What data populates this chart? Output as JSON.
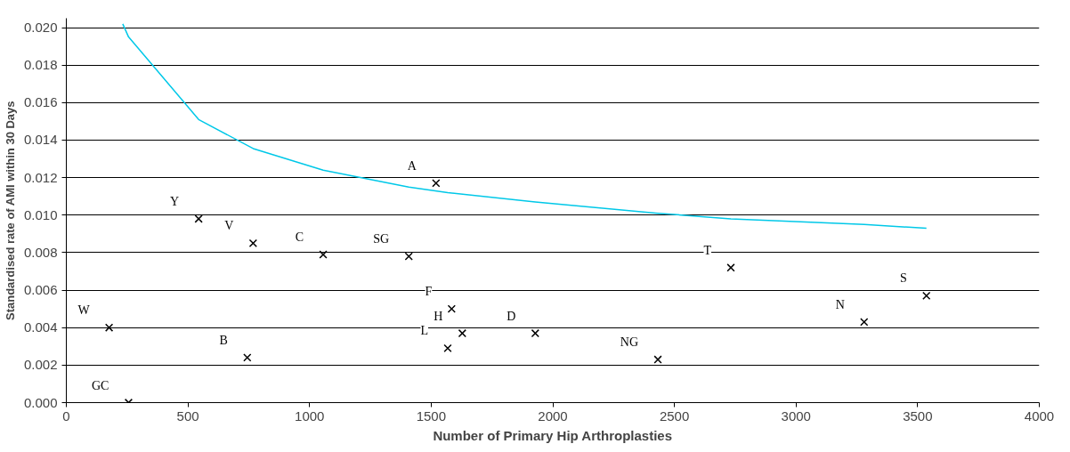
{
  "chart_data": {
    "type": "scatter",
    "xlabel": "Number of Primary Hip Arthroplasties",
    "ylabel": "Standardised rate of AMI within 30 Days",
    "xlim": [
      0,
      4000
    ],
    "xticks": [
      0,
      500,
      1000,
      1500,
      2000,
      2500,
      3000,
      3500,
      4000
    ],
    "ylim": [
      0,
      0.0205
    ],
    "yticks": [
      {
        "value": 0,
        "label": "0.000"
      },
      {
        "value": 0.002,
        "label": "0.002"
      },
      {
        "value": 0.004,
        "label": "0.004"
      },
      {
        "value": 0.006,
        "label": "0.006"
      },
      {
        "value": 0.008,
        "label": "0.008"
      },
      {
        "value": 0.01,
        "label": "0.010"
      },
      {
        "value": 0.012,
        "label": "0.012"
      },
      {
        "value": 0.014,
        "label": "0.014"
      },
      {
        "value": 0.016,
        "label": "0.016"
      },
      {
        "value": 0.018,
        "label": "0.018"
      },
      {
        "value": 0.02,
        "label": "0.020"
      }
    ],
    "grid": "y",
    "series": [
      {
        "marker": "cross",
        "color": "#000000",
        "x": [
          1520,
          544,
          768,
          1056,
          1408,
          2732,
          3536,
          1584,
          176,
          3280,
          1628,
          1928,
          1568,
          744,
          2432,
          256
        ],
        "values": [
          0.0117,
          0.0098,
          0.0085,
          0.0079,
          0.0078,
          0.0072,
          0.0057,
          0.005,
          0.004,
          0.0043,
          0.0037,
          0.0037,
          0.0029,
          0.0024,
          0.0023,
          0.0
        ],
        "value_labels": [
          "A",
          "Y",
          "V",
          "C",
          "SG",
          "T",
          "S",
          "F",
          "W",
          "N",
          "H",
          "D",
          "L",
          "B",
          "NG",
          "GC"
        ]
      },
      {
        "type": "line",
        "marker": "none",
        "line_style": "solid",
        "color": "#00c8e8",
        "x": [
          232,
          256,
          544,
          768,
          1056,
          1408,
          1568,
          1928,
          2432,
          2732,
          3280,
          3536
        ],
        "values": [
          0.0202,
          0.0195,
          0.0151,
          0.01355,
          0.0124,
          0.0115,
          0.0112,
          0.0107,
          0.0101,
          0.0098,
          0.0095,
          0.0093
        ]
      }
    ]
  }
}
